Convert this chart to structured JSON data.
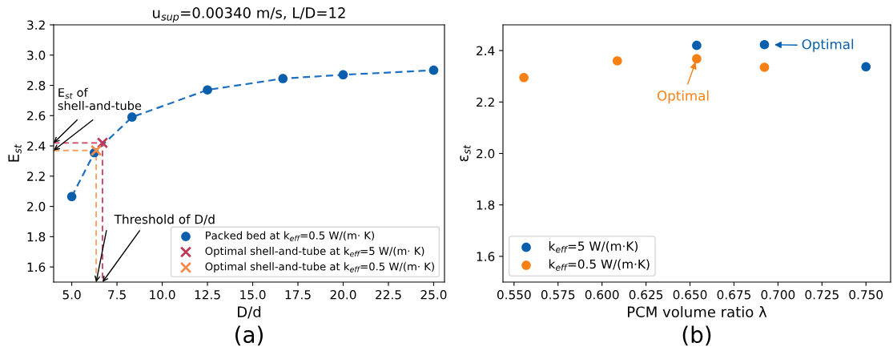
{
  "chart_data": [
    {
      "type": "scatter",
      "title": "u$_{sup}$=0.00340 m/s, L/D=12",
      "xlabel": "D/d",
      "ylabel": "E$_{st}$",
      "xlim": [
        4.0,
        25.6
      ],
      "xticks": [
        {
          "value": 5,
          "label": "5.0"
        },
        {
          "value": 7.5,
          "label": "7.5"
        },
        {
          "value": 10,
          "label": "10.0"
        },
        {
          "value": 12.5,
          "label": "12.5"
        },
        {
          "value": 15,
          "label": "15.0"
        },
        {
          "value": 17.5,
          "label": "17.5"
        },
        {
          "value": 20,
          "label": "20.0"
        },
        {
          "value": 22.5,
          "label": "22.5"
        },
        {
          "value": 25,
          "label": "25.0"
        }
      ],
      "ylim": [
        1.5,
        3.2
      ],
      "yticks": [
        {
          "value": 1.6,
          "label": "1.6"
        },
        {
          "value": 1.8,
          "label": "1.8"
        },
        {
          "value": 2.0,
          "label": "2.0"
        },
        {
          "value": 2.2,
          "label": "2.2"
        },
        {
          "value": 2.4,
          "label": "2.4"
        },
        {
          "value": 2.6,
          "label": "2.6"
        },
        {
          "value": 2.8,
          "label": "2.8"
        },
        {
          "value": 3.0,
          "label": "3.0"
        },
        {
          "value": 3.2,
          "label": "3.2"
        }
      ],
      "grid": false,
      "legend": "bottom right",
      "series": [
        {
          "type": "line",
          "line_style": "dashed",
          "marker": "none",
          "color": "#1f6fc0",
          "x": [
            5,
            6.25,
            8.33,
            12.5,
            16.67,
            20,
            25
          ],
          "values": [
            2.065,
            2.355,
            2.59,
            2.77,
            2.845,
            2.87,
            2.9
          ]
        },
        {
          "type": "line",
          "line_style": "dashed",
          "marker": "none",
          "color": "#c8415f",
          "x": [
            4.0,
            6.7,
            6.7
          ],
          "values": [
            2.42,
            2.42,
            1.5
          ]
        },
        {
          "type": "line",
          "line_style": "dashed",
          "marker": "none",
          "color": "#f7a05f",
          "x": [
            4.0,
            6.35,
            6.35
          ],
          "values": [
            2.37,
            2.37,
            1.5
          ]
        },
        {
          "type": "scatter",
          "marker": "circle",
          "name": "Packed bed at k$_{eff}$=0.5 W/(m· K)",
          "color": "#0a5fad",
          "x": [
            5,
            6.25,
            8.33,
            12.5,
            16.67,
            20,
            25
          ],
          "values": [
            2.065,
            2.355,
            2.59,
            2.77,
            2.845,
            2.87,
            2.9
          ]
        },
        {
          "type": "scatter",
          "marker": "cross",
          "name": "Optimal shell-and-tube at k$_{eff}$=5 W/(m· K)",
          "color": "#c0395a",
          "x": [
            6.7
          ],
          "values": [
            2.42
          ]
        },
        {
          "type": "scatter",
          "marker": "cross",
          "name": "Optimal shell-and-tube at k$_{eff}$=0.5 W/(m· K)",
          "color": "#f58a4a",
          "x": [
            6.35
          ],
          "values": [
            2.37
          ]
        }
      ],
      "annotations": [
        {
          "text": "E$_{st}$ of\nshell-and-tube",
          "x": 4.0,
          "y": 2.42
        },
        {
          "text": "Threshold of D/d",
          "x": 6.7,
          "y": 1.5
        },
        "(a)"
      ]
    },
    {
      "type": "scatter",
      "xlabel": "PCM volume ratio λ",
      "ylabel": "ε$_{st}$",
      "xlim": [
        0.5437,
        0.764
      ],
      "xticks": [
        {
          "value": 0.55,
          "label": "0.550"
        },
        {
          "value": 0.575,
          "label": "0.575"
        },
        {
          "value": 0.6,
          "label": "0.600"
        },
        {
          "value": 0.625,
          "label": "0.625"
        },
        {
          "value": 0.65,
          "label": "0.650"
        },
        {
          "value": 0.675,
          "label": "0.675"
        },
        {
          "value": 0.7,
          "label": "0.700"
        },
        {
          "value": 0.725,
          "label": "0.725"
        },
        {
          "value": 0.75,
          "label": "0.750"
        }
      ],
      "ylim": [
        1.5,
        2.5
      ],
      "yticks": [
        {
          "value": 1.6,
          "label": "1.6"
        },
        {
          "value": 1.8,
          "label": "1.8"
        },
        {
          "value": 2.0,
          "label": "2.0"
        },
        {
          "value": 2.2,
          "label": "2.2"
        },
        {
          "value": 2.4,
          "label": "2.4"
        }
      ],
      "grid": false,
      "legend": "bottom left",
      "marker": "circle",
      "series": [
        {
          "name": "k$_{eff}$=5 W/(m·K)",
          "color": "#0a5fad",
          "x": [
            0.6538,
            0.6923,
            0.75
          ],
          "values": [
            2.42,
            2.423,
            2.337
          ]
        },
        {
          "name": "k$_{eff}$=0.5 W/(m·K)",
          "color": "#f68014",
          "x": [
            0.5556,
            0.6087,
            0.6538,
            0.6923
          ],
          "values": [
            2.295,
            2.36,
            2.368,
            2.335
          ]
        }
      ],
      "annotations": [
        {
          "text": "Optimal",
          "x": 0.6923,
          "y": 2.423
        },
        {
          "text": "Optimal",
          "x": 0.6538,
          "y": 2.368
        },
        "(b)"
      ]
    }
  ]
}
